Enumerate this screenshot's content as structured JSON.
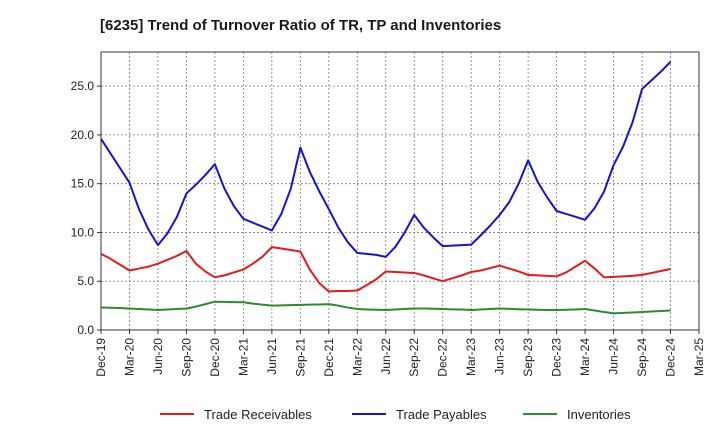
{
  "chart_data": {
    "type": "line",
    "title": "[6235]  Trend of Turnover Ratio of TR, TP and Inventories",
    "xlabel": "",
    "ylabel": "",
    "x_tick_labels": [
      "Dec-19",
      "Mar-20",
      "Jun-20",
      "Sep-20",
      "Dec-20",
      "Mar-21",
      "Jun-21",
      "Sep-21",
      "Dec-21",
      "Mar-22",
      "Jun-22",
      "Sep-22",
      "Dec-22",
      "Mar-23",
      "Jun-23",
      "Sep-23",
      "Dec-23",
      "Mar-24",
      "Jun-24",
      "Sep-24",
      "Dec-24",
      "Mar-25"
    ],
    "y_tick_labels": [
      "0.0",
      "5.0",
      "10.0",
      "15.0",
      "20.0",
      "25.0"
    ],
    "y_ticks": [
      0,
      5,
      10,
      15,
      20,
      25
    ],
    "ylim": [
      0,
      28.5
    ],
    "grid": true,
    "legend_position": "bottom",
    "x": [
      "Dec-19",
      "Jan-20",
      "Feb-20",
      "Mar-20",
      "Apr-20",
      "May-20",
      "Jun-20",
      "Jul-20",
      "Aug-20",
      "Sep-20",
      "Oct-20",
      "Nov-20",
      "Dec-20",
      "Jan-21",
      "Feb-21",
      "Mar-21",
      "Apr-21",
      "May-21",
      "Jun-21",
      "Jul-21",
      "Aug-21",
      "Sep-21",
      "Oct-21",
      "Nov-21",
      "Dec-21",
      "Jan-22",
      "Feb-22",
      "Mar-22",
      "Apr-22",
      "May-22",
      "Jun-22",
      "Jul-22",
      "Aug-22",
      "Sep-22",
      "Oct-22",
      "Nov-22",
      "Dec-22",
      "Jan-23",
      "Feb-23",
      "Mar-23",
      "Apr-23",
      "May-23",
      "Jun-23",
      "Jul-23",
      "Aug-23",
      "Sep-23",
      "Oct-23",
      "Nov-23",
      "Dec-23",
      "Jan-24",
      "Feb-24",
      "Mar-24",
      "Apr-24",
      "May-24",
      "Jun-24",
      "Jul-24",
      "Aug-24",
      "Sep-24",
      "Oct-24",
      "Nov-24",
      "Dec-24"
    ],
    "series": [
      {
        "name": "Trade Receivables",
        "color": "#e41a1c",
        "values": [
          7.8,
          7.3,
          6.7,
          6.1,
          6.3,
          6.5,
          6.8,
          7.2,
          7.6,
          8.1,
          6.8,
          6.0,
          5.4,
          5.6,
          5.9,
          6.2,
          6.8,
          7.5,
          8.5,
          8.35,
          8.2,
          8.05,
          6.2,
          4.8,
          3.95,
          4.0,
          4.0,
          4.05,
          4.6,
          5.2,
          6.0,
          5.95,
          5.9,
          5.85,
          5.6,
          5.3,
          5.0,
          5.3,
          5.6,
          5.95,
          6.1,
          6.35,
          6.6,
          6.3,
          6.0,
          5.65,
          5.6,
          5.55,
          5.5,
          5.9,
          6.5,
          7.1,
          6.3,
          5.4,
          5.45,
          5.5,
          5.55,
          5.65,
          5.85,
          6.05,
          6.25
        ]
      },
      {
        "name": "Trade Payables",
        "color": "#1414d2",
        "values": [
          19.6,
          18.1,
          16.6,
          15.1,
          12.4,
          10.3,
          8.7,
          9.9,
          11.6,
          14.0,
          14.9,
          15.9,
          17.0,
          14.5,
          12.7,
          11.4,
          11.0,
          10.6,
          10.2,
          11.9,
          14.5,
          18.7,
          16.2,
          14.2,
          12.4,
          10.5,
          9.0,
          7.9,
          7.8,
          7.7,
          7.5,
          8.5,
          10.0,
          11.8,
          10.5,
          9.5,
          8.6,
          8.65,
          8.7,
          8.75,
          9.7,
          10.7,
          11.8,
          13.1,
          15.0,
          17.4,
          15.2,
          13.6,
          12.2,
          11.9,
          11.6,
          11.3,
          12.5,
          14.2,
          16.9,
          18.8,
          21.3,
          24.7,
          25.6,
          26.5,
          27.5
        ]
      },
      {
        "name": "Inventories",
        "color": "#2e8b2e",
        "values": [
          2.3,
          2.28,
          2.25,
          2.2,
          2.15,
          2.1,
          2.05,
          2.1,
          2.15,
          2.2,
          2.4,
          2.65,
          2.9,
          2.88,
          2.86,
          2.85,
          2.7,
          2.6,
          2.5,
          2.52,
          2.55,
          2.57,
          2.6,
          2.62,
          2.65,
          2.5,
          2.3,
          2.15,
          2.1,
          2.07,
          2.05,
          2.1,
          2.15,
          2.2,
          2.2,
          2.18,
          2.15,
          2.12,
          2.1,
          2.05,
          2.1,
          2.15,
          2.2,
          2.17,
          2.13,
          2.1,
          2.07,
          2.05,
          2.05,
          2.07,
          2.1,
          2.15,
          2.0,
          1.85,
          1.7,
          1.75,
          1.8,
          1.85,
          1.9,
          1.95,
          2.0
        ]
      }
    ]
  }
}
